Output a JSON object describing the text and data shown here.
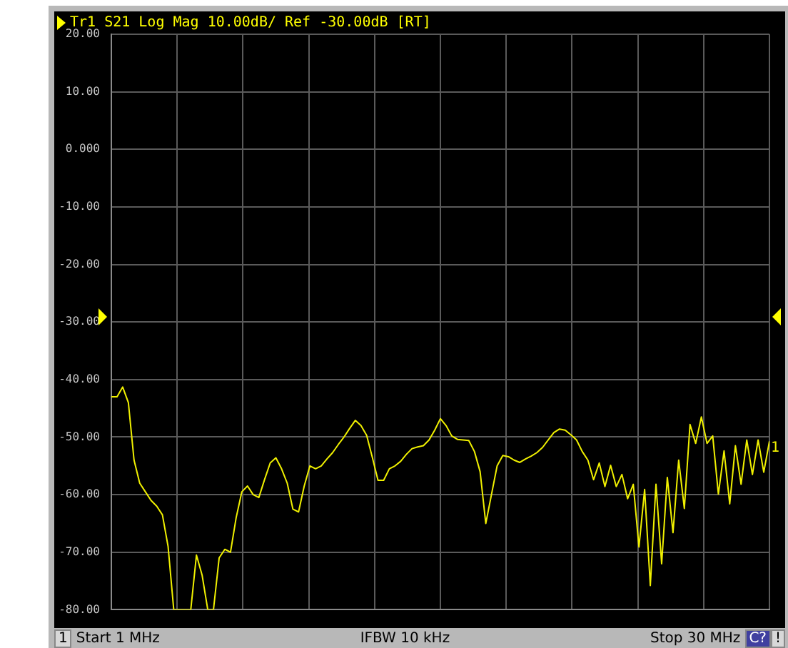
{
  "chart_data": {
    "type": "line",
    "title": "Tr1 S21 Log Mag 10.00dB/ Ref -30.00dB [RT]",
    "categories": [
      null,
      null,
      null,
      null,
      null,
      null,
      null,
      null,
      null,
      null,
      null,
      null,
      null,
      null,
      null,
      null,
      null,
      null,
      null,
      null,
      null,
      null,
      null,
      null,
      null,
      null,
      null,
      null,
      null,
      null,
      null,
      null,
      null,
      null,
      null,
      null,
      null,
      null,
      null,
      null,
      null,
      null,
      null,
      null,
      null,
      null,
      null,
      null,
      null,
      null,
      null,
      null,
      null,
      null,
      null,
      null,
      null,
      null,
      null,
      null,
      null,
      null,
      null,
      null,
      null,
      null,
      null,
      null,
      null,
      null,
      null,
      null,
      null,
      null,
      null,
      null,
      null,
      null,
      null,
      null,
      null,
      null,
      null,
      null,
      null,
      null,
      null,
      null,
      null,
      null,
      null,
      null,
      null,
      null,
      null,
      null,
      null,
      null,
      null,
      null,
      null,
      null,
      null,
      null,
      null,
      null,
      null,
      null,
      null,
      null,
      null,
      null,
      null,
      null,
      null,
      null,
      null
    ],
    "series": [
      {
        "color": "#f0f000",
        "values": [
          -43,
          -43,
          -41.3,
          -44,
          -54,
          -58,
          -59.5,
          -61,
          -62,
          -63.5,
          -69,
          -80,
          -80,
          -80,
          -80,
          -70.5,
          -74,
          -80,
          -80,
          -71,
          -69.5,
          -70,
          -64,
          -59.5,
          -58.5,
          -60,
          -60.5,
          -57.4,
          -54.5,
          -53.6,
          -55.5,
          -58,
          -62.5,
          -63,
          -58.5,
          -55,
          -55.5,
          -55,
          -53.8,
          -52.7,
          -51.3,
          -50,
          -48.5,
          -47.1,
          -48,
          -49.7,
          -53.5,
          -57.5,
          -57.5,
          -55.5,
          -55,
          -54.2,
          -53,
          -52,
          -51.7,
          -51.5,
          -50.5,
          -48.8,
          -46.8,
          -48,
          -49.8,
          -50.4,
          -50.5,
          -50.6,
          -52.5,
          -56,
          -65,
          -60,
          -55,
          -53.2,
          -53.4,
          -54,
          -54.4,
          -53.8,
          -53.3,
          -52.7,
          -51.8,
          -50.5,
          -49.2,
          -48.6,
          -48.8,
          -49.6,
          -50.5,
          -52.5,
          -54,
          -57.4,
          -54.5,
          -58.6,
          -54.9,
          -58.6,
          -56.5,
          -60.7,
          -58.2,
          -69.1,
          -59.1,
          -75.8,
          -58.2,
          -72,
          -57,
          -66.6,
          -54,
          -62.4,
          -47.8,
          -51.1,
          -46.5,
          -51.1,
          -49.8,
          -59.9,
          -52.4,
          -61.6,
          -51.5,
          -58.2,
          -50.5,
          -56.5,
          -50.5,
          -56.1,
          -50.7
        ]
      }
    ],
    "ylim": [
      -80,
      20
    ],
    "yticks": [
      {
        "value": 20,
        "label": "20.00"
      },
      {
        "value": 10,
        "label": "10.00"
      },
      {
        "value": 0,
        "label": "0.000"
      },
      {
        "value": -10,
        "label": "-10.00"
      },
      {
        "value": -20,
        "label": "-20.00"
      },
      {
        "value": -30,
        "label": "-30.00"
      },
      {
        "value": -40,
        "label": "-40.00"
      },
      {
        "value": -50,
        "label": "-50.00"
      },
      {
        "value": -60,
        "label": "-60.00"
      },
      {
        "value": -70,
        "label": "-70.00"
      },
      {
        "value": -80,
        "label": "-80.00"
      }
    ],
    "tick_labels": "y",
    "grid": true,
    "legend": false,
    "marker": "none",
    "line_style": "solid",
    "annotations": [
      "1",
      "Start 1 MHz",
      "IFBW 10 kHz",
      "Stop 30 MHz",
      "C?",
      "!",
      {
        "text": "1",
        "y": -51.9
      }
    ]
  }
}
